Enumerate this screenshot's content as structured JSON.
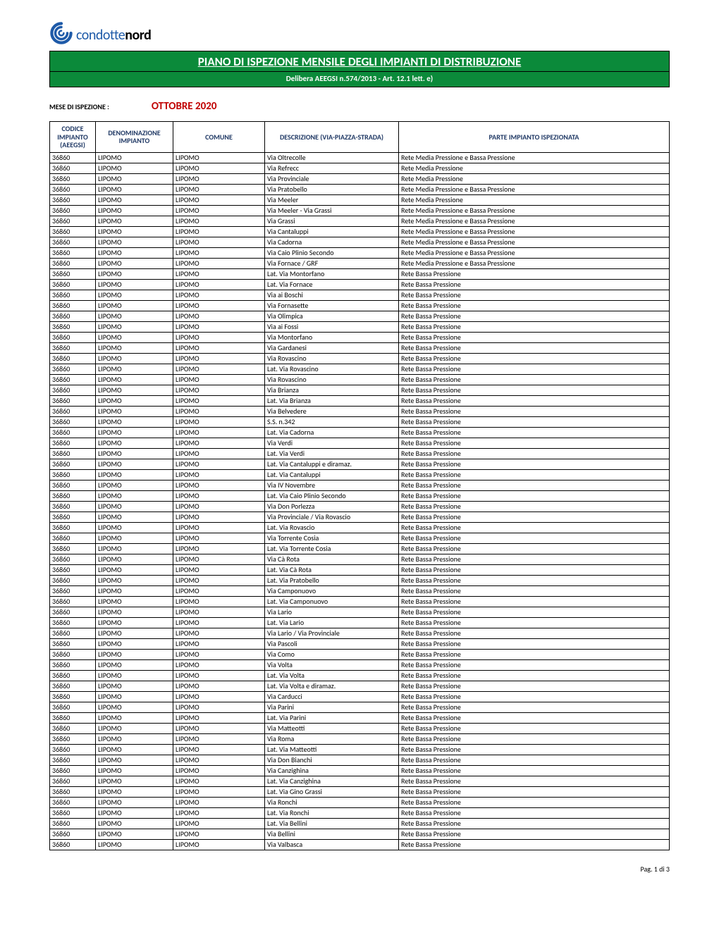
{
  "logo": {
    "text1": "condotte",
    "text2": "nord"
  },
  "title_main": "PIANO DI ISPEZIONE MENSILE DEGLI IMPIANTI DI DISTRIBUZIONE",
  "title_sub": "Delibera AEEGSI n.574/2013 - Art. 12.1 lett. e)",
  "mese_label": "MESE DI ISPEZIONE :",
  "mese_value": "OTTOBRE 2020",
  "colors": {
    "title_bg": "#0b8a3a",
    "title_fg": "#ffffff",
    "header_fg": "#1f3864",
    "mese_value": "#c00000",
    "logo_blue": "#1e5aa8"
  },
  "columns": [
    "CODICE IMPIANTO (AEEGSI)",
    "DENOMINAZIONE IMPIANTO",
    "COMUNE",
    "DESCRIZIONE (VIA-PIAZZA-STRADA)",
    "PARTE IMPIANTO ISPEZIONATA"
  ],
  "rows": [
    [
      "36860",
      "LIPOMO",
      "LIPOMO",
      "Via Oltrecolle",
      "Rete Media Pressione e Bassa Pressione"
    ],
    [
      "36860",
      "LIPOMO",
      "LIPOMO",
      "Via Refrecc",
      "Rete Media Pressione"
    ],
    [
      "36860",
      "LIPOMO",
      "LIPOMO",
      "Via Provinciale",
      "Rete Media Pressione"
    ],
    [
      "36860",
      "LIPOMO",
      "LIPOMO",
      "Via Pratobello",
      "Rete Media Pressione e Bassa Pressione"
    ],
    [
      "36860",
      "LIPOMO",
      "LIPOMO",
      "Via Meeler",
      "Rete Media Pressione"
    ],
    [
      "36860",
      "LIPOMO",
      "LIPOMO",
      "Via Meeler - Via Grassi",
      "Rete Media Pressione e Bassa Pressione"
    ],
    [
      "36860",
      "LIPOMO",
      "LIPOMO",
      "Via Grassi",
      "Rete Media Pressione e Bassa Pressione"
    ],
    [
      "36860",
      "LIPOMO",
      "LIPOMO",
      "Via Cantaluppi",
      "Rete Media Pressione e Bassa Pressione"
    ],
    [
      "36860",
      "LIPOMO",
      "LIPOMO",
      "Via Cadorna",
      "Rete Media Pressione e Bassa Pressione"
    ],
    [
      "36860",
      "LIPOMO",
      "LIPOMO",
      "Via Caio Plinio Secondo",
      "Rete Media Pressione e Bassa Pressione"
    ],
    [
      "36860",
      "LIPOMO",
      "LIPOMO",
      "Via Fornace / GRF",
      "Rete Media Pressione e Bassa Pressione"
    ],
    [
      "36860",
      "LIPOMO",
      "LIPOMO",
      "Lat. Via Montorfano",
      "Rete Bassa Pressione"
    ],
    [
      "36860",
      "LIPOMO",
      "LIPOMO",
      "Lat. Via Fornace",
      "Rete Bassa Pressione"
    ],
    [
      "36860",
      "LIPOMO",
      "LIPOMO",
      "Via ai Boschi",
      "Rete Bassa Pressione"
    ],
    [
      "36860",
      "LIPOMO",
      "LIPOMO",
      "Via Fornasette",
      "Rete Bassa Pressione"
    ],
    [
      "36860",
      "LIPOMO",
      "LIPOMO",
      "Via Olimpica",
      "Rete Bassa Pressione"
    ],
    [
      "36860",
      "LIPOMO",
      "LIPOMO",
      "Via ai Fossi",
      "Rete Bassa Pressione"
    ],
    [
      "36860",
      "LIPOMO",
      "LIPOMO",
      "Via Montorfano",
      "Rete Bassa Pressione"
    ],
    [
      "36860",
      "LIPOMO",
      "LIPOMO",
      "Via Gardanesi",
      "Rete Bassa Pressione"
    ],
    [
      "36860",
      "LIPOMO",
      "LIPOMO",
      "Via Rovascino",
      "Rete Bassa Pressione"
    ],
    [
      "36860",
      "LIPOMO",
      "LIPOMO",
      "Lat. Via Rovascino",
      "Rete Bassa Pressione"
    ],
    [
      "36860",
      "LIPOMO",
      "LIPOMO",
      "Via Rovascino",
      "Rete Bassa Pressione"
    ],
    [
      "36860",
      "LIPOMO",
      "LIPOMO",
      "Via Brianza",
      "Rete Bassa Pressione"
    ],
    [
      "36860",
      "LIPOMO",
      "LIPOMO",
      "Lat. Via Brianza",
      "Rete Bassa Pressione"
    ],
    [
      "36860",
      "LIPOMO",
      "LIPOMO",
      "Via Belvedere",
      "Rete Bassa Pressione"
    ],
    [
      "36860",
      "LIPOMO",
      "LIPOMO",
      "S.S. n.342",
      "Rete Bassa Pressione"
    ],
    [
      "36860",
      "LIPOMO",
      "LIPOMO",
      "Lat. Via Cadorna",
      "Rete Bassa Pressione"
    ],
    [
      "36860",
      "LIPOMO",
      "LIPOMO",
      "Via Verdi",
      "Rete Bassa Pressione"
    ],
    [
      "36860",
      "LIPOMO",
      "LIPOMO",
      "Lat. Via Verdi",
      "Rete Bassa Pressione"
    ],
    [
      "36860",
      "LIPOMO",
      "LIPOMO",
      "Lat. Via Cantaluppi e diramaz.",
      "Rete Bassa Pressione"
    ],
    [
      "36860",
      "LIPOMO",
      "LIPOMO",
      "Lat. Via Cantaluppi",
      "Rete Bassa Pressione"
    ],
    [
      "36860",
      "LIPOMO",
      "LIPOMO",
      "Via IV Novembre",
      "Rete Bassa Pressione"
    ],
    [
      "36860",
      "LIPOMO",
      "LIPOMO",
      "Lat. Via Caio Plinio Secondo",
      "Rete Bassa Pressione"
    ],
    [
      "36860",
      "LIPOMO",
      "LIPOMO",
      "Via Don Porlezza",
      "Rete Bassa Pressione"
    ],
    [
      "36860",
      "LIPOMO",
      "LIPOMO",
      "Via Provinciale / Via Rovascio",
      "Rete Bassa Pressione"
    ],
    [
      "36860",
      "LIPOMO",
      "LIPOMO",
      "Lat. Via Rovascio",
      "Rete Bassa Pressione"
    ],
    [
      "36860",
      "LIPOMO",
      "LIPOMO",
      "Via Torrente Cosia",
      "Rete Bassa Pressione"
    ],
    [
      "36860",
      "LIPOMO",
      "LIPOMO",
      "Lat. Via Torrente Cosia",
      "Rete Bassa Pressione"
    ],
    [
      "36860",
      "LIPOMO",
      "LIPOMO",
      "Via Cà Rota",
      "Rete Bassa Pressione"
    ],
    [
      "36860",
      "LIPOMO",
      "LIPOMO",
      "Lat. Via Cà Rota",
      "Rete Bassa Pressione"
    ],
    [
      "36860",
      "LIPOMO",
      "LIPOMO",
      "Lat. Via Pratobello",
      "Rete Bassa Pressione"
    ],
    [
      "36860",
      "LIPOMO",
      "LIPOMO",
      "Via Camponuovo",
      "Rete Bassa Pressione"
    ],
    [
      "36860",
      "LIPOMO",
      "LIPOMO",
      "Lat. Via Camponuovo",
      "Rete Bassa Pressione"
    ],
    [
      "36860",
      "LIPOMO",
      "LIPOMO",
      "Via Lario",
      "Rete Bassa Pressione"
    ],
    [
      "36860",
      "LIPOMO",
      "LIPOMO",
      "Lat. Via Lario",
      "Rete Bassa Pressione"
    ],
    [
      "36860",
      "LIPOMO",
      "LIPOMO",
      "Via Lario / Via Provinciale",
      "Rete Bassa Pressione"
    ],
    [
      "36860",
      "LIPOMO",
      "LIPOMO",
      "Via Pascoli",
      "Rete Bassa Pressione"
    ],
    [
      "36860",
      "LIPOMO",
      "LIPOMO",
      "Via Como",
      "Rete Bassa Pressione"
    ],
    [
      "36860",
      "LIPOMO",
      "LIPOMO",
      "Via Volta",
      "Rete Bassa Pressione"
    ],
    [
      "36860",
      "LIPOMO",
      "LIPOMO",
      "Lat. Via Volta",
      "Rete Bassa Pressione"
    ],
    [
      "36860",
      "LIPOMO",
      "LIPOMO",
      "Lat. Via Volta e diramaz.",
      "Rete Bassa Pressione"
    ],
    [
      "36860",
      "LIPOMO",
      "LIPOMO",
      "Via Carducci",
      "Rete Bassa Pressione"
    ],
    [
      "36860",
      "LIPOMO",
      "LIPOMO",
      "Via Parini",
      "Rete Bassa Pressione"
    ],
    [
      "36860",
      "LIPOMO",
      "LIPOMO",
      "Lat. Via Parini",
      "Rete Bassa Pressione"
    ],
    [
      "36860",
      "LIPOMO",
      "LIPOMO",
      "Via Matteotti",
      "Rete Bassa Pressione"
    ],
    [
      "36860",
      "LIPOMO",
      "LIPOMO",
      "Via Roma",
      "Rete Bassa Pressione"
    ],
    [
      "36860",
      "LIPOMO",
      "LIPOMO",
      "Lat. Via Matteotti",
      "Rete Bassa Pressione"
    ],
    [
      "36860",
      "LIPOMO",
      "LIPOMO",
      "Via Don Bianchi",
      "Rete Bassa Pressione"
    ],
    [
      "36860",
      "LIPOMO",
      "LIPOMO",
      "Via Canzighina",
      "Rete Bassa Pressione"
    ],
    [
      "36860",
      "LIPOMO",
      "LIPOMO",
      "Lat. Via Canzighina",
      "Rete Bassa Pressione"
    ],
    [
      "36860",
      "LIPOMO",
      "LIPOMO",
      "Lat. Via Gino Grassi",
      "Rete Bassa Pressione"
    ],
    [
      "36860",
      "LIPOMO",
      "LIPOMO",
      "Via Ronchi",
      "Rete Bassa Pressione"
    ],
    [
      "36860",
      "LIPOMO",
      "LIPOMO",
      "Lat. Via Ronchi",
      "Rete Bassa Pressione"
    ],
    [
      "36860",
      "LIPOMO",
      "LIPOMO",
      "Lat. Via Bellini",
      "Rete Bassa Pressione"
    ],
    [
      "36860",
      "LIPOMO",
      "LIPOMO",
      "Via Bellini",
      "Rete Bassa Pressione"
    ],
    [
      "36860",
      "LIPOMO",
      "LIPOMO",
      "Via Valbasca",
      "Rete Bassa Pressione"
    ]
  ],
  "footer": "Pag. 1 di 3"
}
